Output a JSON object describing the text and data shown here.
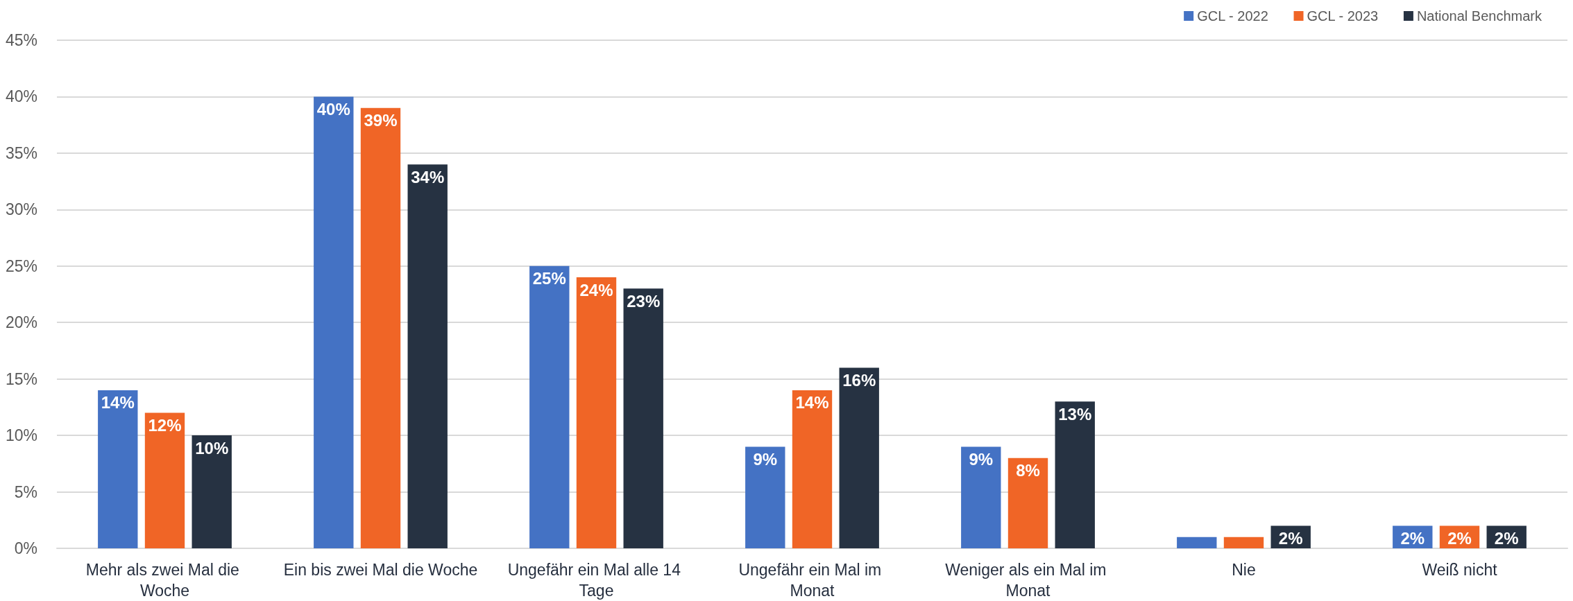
{
  "chart_data": {
    "type": "bar",
    "categories": [
      "Mehr als zwei Mal die Woche",
      "Ein bis zwei Mal die Woche",
      "Ungefähr ein Mal alle 14 Tage",
      "Ungefähr ein Mal im Monat",
      "Weniger als ein Mal im Monat",
      "Nie",
      "Weiß nicht"
    ],
    "series": [
      {
        "name": "GCL - 2022",
        "color": "#4472c4",
        "values": [
          14,
          40,
          25,
          9,
          9,
          1,
          2
        ],
        "value_labels": [
          "14%",
          "40%",
          "25%",
          "9%",
          "9%",
          null,
          "2%"
        ]
      },
      {
        "name": "GCL - 2023",
        "color": "#f06526",
        "values": [
          12,
          39,
          24,
          14,
          8,
          1,
          2
        ],
        "value_labels": [
          "12%",
          "39%",
          "24%",
          "14%",
          "8%",
          null,
          "2%"
        ]
      },
      {
        "name": "National Benchmark",
        "color": "#263242",
        "values": [
          10,
          34,
          23,
          16,
          13,
          2,
          2
        ],
        "value_labels": [
          "10%",
          "34%",
          "23%",
          "16%",
          "13%",
          "2%",
          "2%"
        ]
      }
    ],
    "ylim": [
      0,
      45
    ],
    "yticks": [
      {
        "value": 0,
        "label": "0%"
      },
      {
        "value": 5,
        "label": "5%"
      },
      {
        "value": 10,
        "label": "10%"
      },
      {
        "value": 15,
        "label": "15%"
      },
      {
        "value": 20,
        "label": "20%"
      },
      {
        "value": 25,
        "label": "25%"
      },
      {
        "value": 30,
        "label": "30%"
      },
      {
        "value": 35,
        "label": "35%"
      },
      {
        "value": 40,
        "label": "40%"
      },
      {
        "value": 45,
        "label": "45%"
      }
    ],
    "grid": "y",
    "legend": "top right"
  }
}
